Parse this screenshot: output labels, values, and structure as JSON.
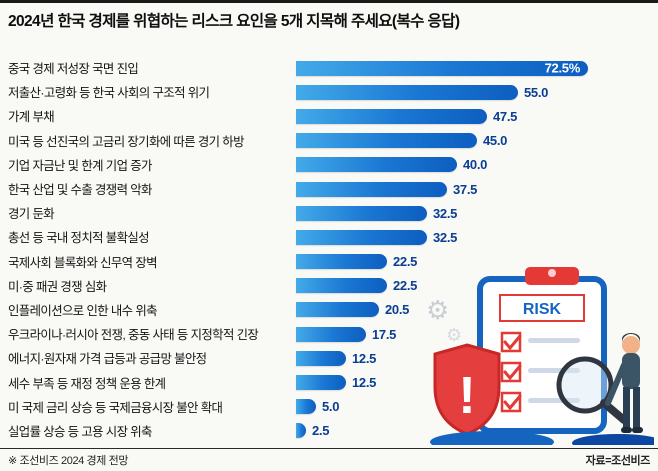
{
  "title": "2024년 한국 경제를 위협하는 리스크 요인을 5개 지목해 주세요(복수 응답)",
  "footer": {
    "left": "※ 조선비즈 2024 경제 전망",
    "right": "자료=조선비즈"
  },
  "illustration": {
    "risk_label": "RISK",
    "gear_glyph": "⚙"
  },
  "chart_data": {
    "type": "bar",
    "orientation": "horizontal",
    "title": "2024년 한국 경제를 위협하는 리스크 요인을 5개 지목해 주세요(복수 응답)",
    "xlabel": "",
    "ylabel": "",
    "xlim": [
      0,
      72.5
    ],
    "grid": false,
    "legend": "none",
    "bar_gradient": [
      "#43aae9",
      "#0d5ec0"
    ],
    "value_color": "#0a3e92",
    "categories": [
      "중국 경제 저성장 국면 진입",
      "저출산·고령화 등 한국 사회의 구조적 위기",
      "가계 부채",
      "미국 등 선진국의 고금리 장기화에 따른 경기 하방",
      "기업 자금난 및 한계 기업 증가",
      "한국 산업 및 수출 경쟁력 악화",
      "경기 둔화",
      "총선 등 국내 정치적 불확실성",
      "국제사회 블록화와 신무역 장벽",
      "미·중 패권 경쟁 심화",
      "인플레이션으로 인한 내수 위축",
      "우크라이나·러시아 전쟁, 중동 사태 등 지정학적 긴장",
      "에너지·원자재 가격 급등과 공급망 불안정",
      "세수 부족 등 재정 정책 운용 한계",
      "미 국제 금리 상승 등 국제금융시장 불안 확대",
      "실업률 상승 등 고용 시장 위축"
    ],
    "values": [
      72.5,
      55.0,
      47.5,
      45.0,
      40.0,
      37.5,
      32.5,
      32.5,
      22.5,
      22.5,
      20.5,
      17.5,
      12.5,
      12.5,
      5.0,
      2.5
    ],
    "value_labels": [
      "72.5%",
      "55.0",
      "47.5",
      "45.0",
      "40.0",
      "37.5",
      "32.5",
      "32.5",
      "22.5",
      "22.5",
      "20.5",
      "17.5",
      "12.5",
      "12.5",
      "5.0",
      "2.5"
    ]
  }
}
